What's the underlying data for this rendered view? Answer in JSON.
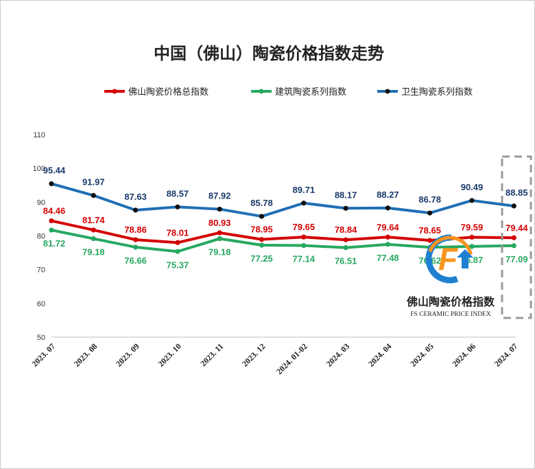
{
  "chart_data": {
    "type": "line",
    "title": "中国（佛山）陶瓷价格指数走势",
    "categories": [
      "2023. 07",
      "2023. 08",
      "2023. 09",
      "2023. 10",
      "2023. 11",
      "2023. 12",
      "2024. 01-02",
      "2024. 03",
      "2024. 04",
      "2024. 05",
      "2024. 06",
      "2024. 07"
    ],
    "ylim": [
      50,
      110
    ],
    "yticks": [
      "50",
      "60",
      "70",
      "80",
      "90",
      "100",
      "110"
    ],
    "grid": false,
    "legend_position": "top",
    "series": [
      {
        "name": "佛山陶瓷价格总指数",
        "color": "#d40000",
        "marker_color": "#d40000",
        "values": [
          84.46,
          81.74,
          78.86,
          78.01,
          80.93,
          78.95,
          79.65,
          78.84,
          79.64,
          78.65,
          79.59,
          79.44
        ],
        "labels": [
          "84.46",
          "81.74",
          "78.86",
          "78.01",
          "80.93",
          "78.95",
          "79.65",
          "78.84",
          "79.64",
          "78.65",
          "79.59",
          "79.44"
        ]
      },
      {
        "name": "建筑陶瓷系列指数",
        "color": "#27a860",
        "marker_color": "#27a860",
        "values": [
          81.72,
          79.18,
          76.66,
          75.37,
          79.18,
          77.25,
          77.14,
          76.51,
          77.48,
          76.62,
          76.87,
          77.09
        ],
        "labels": [
          "81.72",
          "79.18",
          "76.66",
          "75.37",
          "79.18",
          "77.25",
          "77.14",
          "76.51",
          "77.48",
          "76.62",
          "76.87",
          "77.09"
        ]
      },
      {
        "name": "卫生陶瓷系列指数",
        "color": "#1f6fb4",
        "marker_color": "#111111",
        "label_color": "#1a3a6b",
        "values": [
          95.44,
          91.97,
          87.63,
          88.57,
          87.92,
          85.78,
          89.71,
          88.17,
          88.27,
          86.78,
          90.49,
          88.85
        ],
        "labels": [
          "95.44",
          "91.97",
          "87.63",
          "88.57",
          "87.92",
          "85.78",
          "89.71",
          "88.17",
          "88.27",
          "86.78",
          "90.49",
          "88.85"
        ]
      }
    ]
  },
  "watermark": {
    "title_cn": "佛山陶瓷价格指数",
    "title_en": "FS CERAMIC PRICE INDEX",
    "logo_letter": "F",
    "logo_orange": "#f7941d",
    "logo_blue": "#1f7fd0"
  }
}
